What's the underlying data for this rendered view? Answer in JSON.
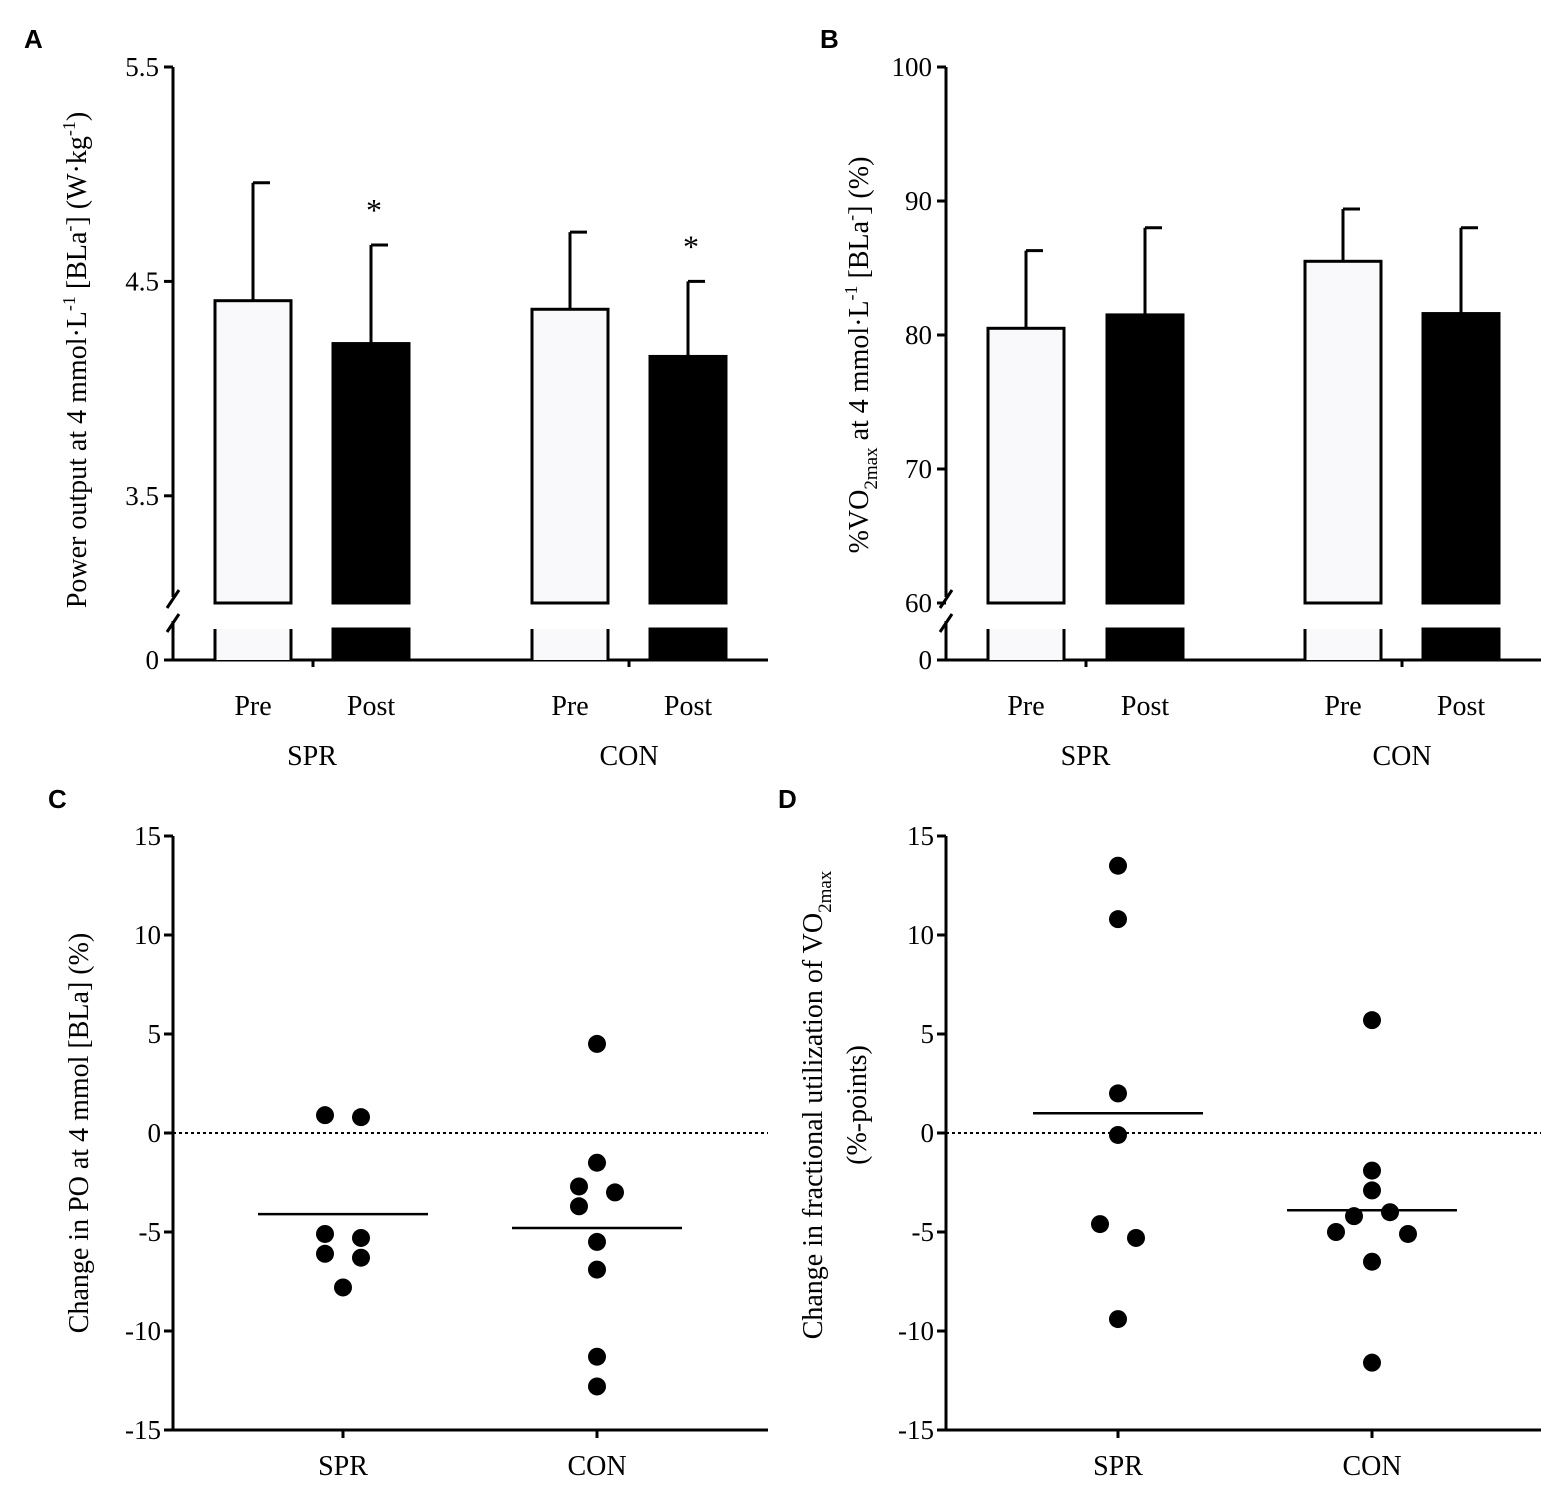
{
  "chart_data": [
    {
      "panel": "A",
      "type": "bar",
      "ylabel": "Power output at 4 mmol·L⁻¹ [BLa⁻] (W·kg⁻¹)",
      "ylim": [
        0,
        5.5
      ],
      "broken_axis": [
        0,
        3.0
      ],
      "yticks": [
        "3.5",
        "4.5",
        "5.5"
      ],
      "ytick_values": [
        3.5,
        4.5,
        5.5
      ],
      "zero_label": "0",
      "groups": [
        "SPR",
        "CON"
      ],
      "bars": [
        {
          "group": "SPR",
          "label": "Pre",
          "value": 4.41,
          "error": 0.55,
          "fill": "#f9f9fb",
          "sig": ""
        },
        {
          "group": "SPR",
          "label": "Post",
          "value": 4.21,
          "error": 0.46,
          "fill": "#000000",
          "sig": "*"
        },
        {
          "group": "CON",
          "label": "Pre",
          "value": 4.37,
          "error": 0.36,
          "fill": "#f9f9fb",
          "sig": ""
        },
        {
          "group": "CON",
          "label": "Post",
          "value": 4.15,
          "error": 0.35,
          "fill": "#000000",
          "sig": "*"
        }
      ]
    },
    {
      "panel": "B",
      "type": "bar",
      "ylabel": "%VO2max at 4 mmol·L⁻¹ [BLa⁻] (%)",
      "ylim": [
        0,
        100
      ],
      "broken_axis": [
        0,
        60
      ],
      "yticks": [
        "60",
        "70",
        "80",
        "90",
        "100"
      ],
      "ytick_values": [
        60,
        70,
        80,
        90,
        100
      ],
      "zero_label": "0",
      "groups": [
        "SPR",
        "CON"
      ],
      "bars": [
        {
          "group": "SPR",
          "label": "Pre",
          "value": 80.5,
          "error": 5.8,
          "fill": "#f9f9fb",
          "sig": ""
        },
        {
          "group": "SPR",
          "label": "Post",
          "value": 81.5,
          "error": 6.5,
          "fill": "#000000",
          "sig": ""
        },
        {
          "group": "CON",
          "label": "Pre",
          "value": 85.5,
          "error": 3.9,
          "fill": "#f9f9fb",
          "sig": ""
        },
        {
          "group": "CON",
          "label": "Post",
          "value": 81.6,
          "error": 6.4,
          "fill": "#000000",
          "sig": ""
        }
      ]
    },
    {
      "panel": "C",
      "type": "scatter",
      "ylabel": "Change in PO at 4 mmol [BLa] (%)",
      "ylim": [
        -15,
        15
      ],
      "yticks": [
        "-15",
        "-10",
        "-5",
        "0",
        "5",
        "10",
        "15"
      ],
      "ytick_values": [
        -15,
        -10,
        -5,
        0,
        5,
        10,
        15
      ],
      "categories": [
        "SPR",
        "CON"
      ],
      "reference_line": 0,
      "groups": [
        {
          "name": "SPR",
          "mean": -4.1,
          "points": [
            {
              "offset": -0.12,
              "value": 0.9
            },
            {
              "offset": 0.12,
              "value": 0.8
            },
            {
              "offset": -0.12,
              "value": -5.1
            },
            {
              "offset": 0.12,
              "value": -5.3
            },
            {
              "offset": -0.12,
              "value": -6.1
            },
            {
              "offset": 0.12,
              "value": -6.3
            },
            {
              "offset": 0.0,
              "value": -7.8
            }
          ]
        },
        {
          "name": "CON",
          "mean": -4.8,
          "points": [
            {
              "offset": 0.0,
              "value": 4.5
            },
            {
              "offset": 0.0,
              "value": -1.5
            },
            {
              "offset": -0.12,
              "value": -2.7
            },
            {
              "offset": 0.12,
              "value": -3.0
            },
            {
              "offset": -0.12,
              "value": -3.7
            },
            {
              "offset": 0.0,
              "value": -5.5
            },
            {
              "offset": 0.0,
              "value": -6.9
            },
            {
              "offset": 0.0,
              "value": -11.3
            },
            {
              "offset": 0.0,
              "value": -12.8
            }
          ]
        }
      ]
    },
    {
      "panel": "D",
      "type": "scatter",
      "ylabel": "Change in fractional utilization of VO2max (%-points)",
      "ylim": [
        -15,
        15
      ],
      "yticks": [
        "-15",
        "-10",
        "-5",
        "0",
        "5",
        "10",
        "15"
      ],
      "ytick_values": [
        -15,
        -10,
        -5,
        0,
        5,
        10,
        15
      ],
      "categories": [
        "SPR",
        "CON"
      ],
      "reference_line": 0,
      "groups": [
        {
          "name": "SPR",
          "mean": 1.0,
          "points": [
            {
              "offset": 0.0,
              "value": 13.5
            },
            {
              "offset": 0.0,
              "value": 10.8
            },
            {
              "offset": 0.0,
              "value": 2.0
            },
            {
              "offset": 0.0,
              "value": -0.1
            },
            {
              "offset": -0.12,
              "value": -4.6
            },
            {
              "offset": 0.12,
              "value": -5.3
            },
            {
              "offset": 0.0,
              "value": -9.4
            }
          ]
        },
        {
          "name": "CON",
          "mean": -3.9,
          "points": [
            {
              "offset": 0.0,
              "value": 5.7
            },
            {
              "offset": 0.0,
              "value": -1.9
            },
            {
              "offset": 0.0,
              "value": -2.9
            },
            {
              "offset": -0.12,
              "value": -4.2
            },
            {
              "offset": 0.12,
              "value": -4.0
            },
            {
              "offset": -0.24,
              "value": -5.0
            },
            {
              "offset": 0.24,
              "value": -5.1
            },
            {
              "offset": 0.0,
              "value": -6.5
            },
            {
              "offset": 0.0,
              "value": -11.6
            }
          ]
        }
      ]
    }
  ]
}
